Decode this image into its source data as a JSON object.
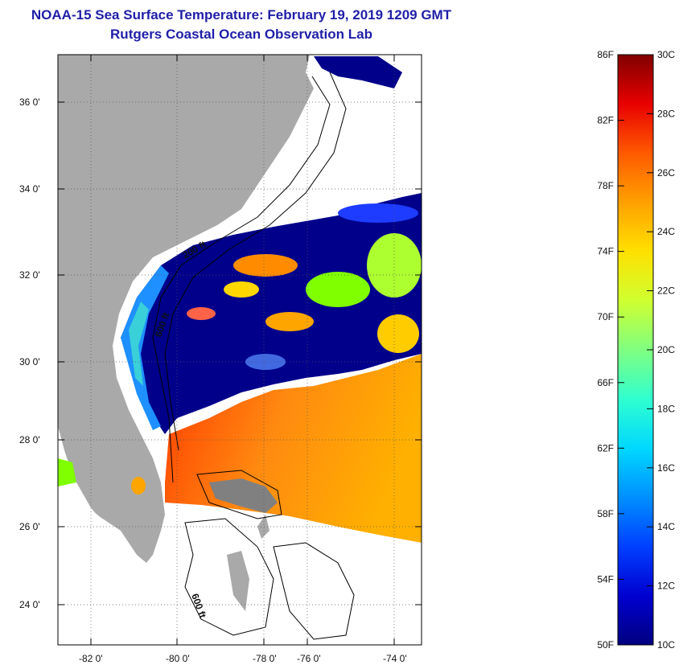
{
  "title": "NOAA-15 Sea Surface Temperature:  February 19, 2019 1209 GMT",
  "subtitle": "Rutgers Coastal Ocean Observation Lab",
  "lat_labels": [
    "36 0'",
    "34 0'",
    "32 0'",
    "30 0'",
    "28 0'",
    "26 0'",
    "24 0'"
  ],
  "lon_labels": [
    "-82 0'",
    "-80 0'",
    "-78 0'",
    "-76 0'",
    "-74 0'"
  ],
  "isobath_labels": [
    "200 ft",
    "600 ft",
    "600 ft"
  ],
  "colorbar": {
    "f_labels": [
      "86F",
      "82F",
      "78F",
      "74F",
      "70F",
      "66F",
      "62F",
      "58F",
      "54F",
      "50F"
    ],
    "c_labels": [
      "30C",
      "28C",
      "26C",
      "24C",
      "22C",
      "20C",
      "18C",
      "16C",
      "14C",
      "12C",
      "10C"
    ],
    "colors": [
      "#000080",
      "#0000d0",
      "#0040ff",
      "#0090ff",
      "#00d8ff",
      "#30ffcf",
      "#80ff80",
      "#cfff30",
      "#ffe000",
      "#ffa000",
      "#ff5a00",
      "#e80000",
      "#800000"
    ]
  },
  "colors": {
    "land": "#a9a9a9",
    "title": "#1f1fa8",
    "cold_water": "#00008b",
    "warm_water": "#ff7a00"
  }
}
